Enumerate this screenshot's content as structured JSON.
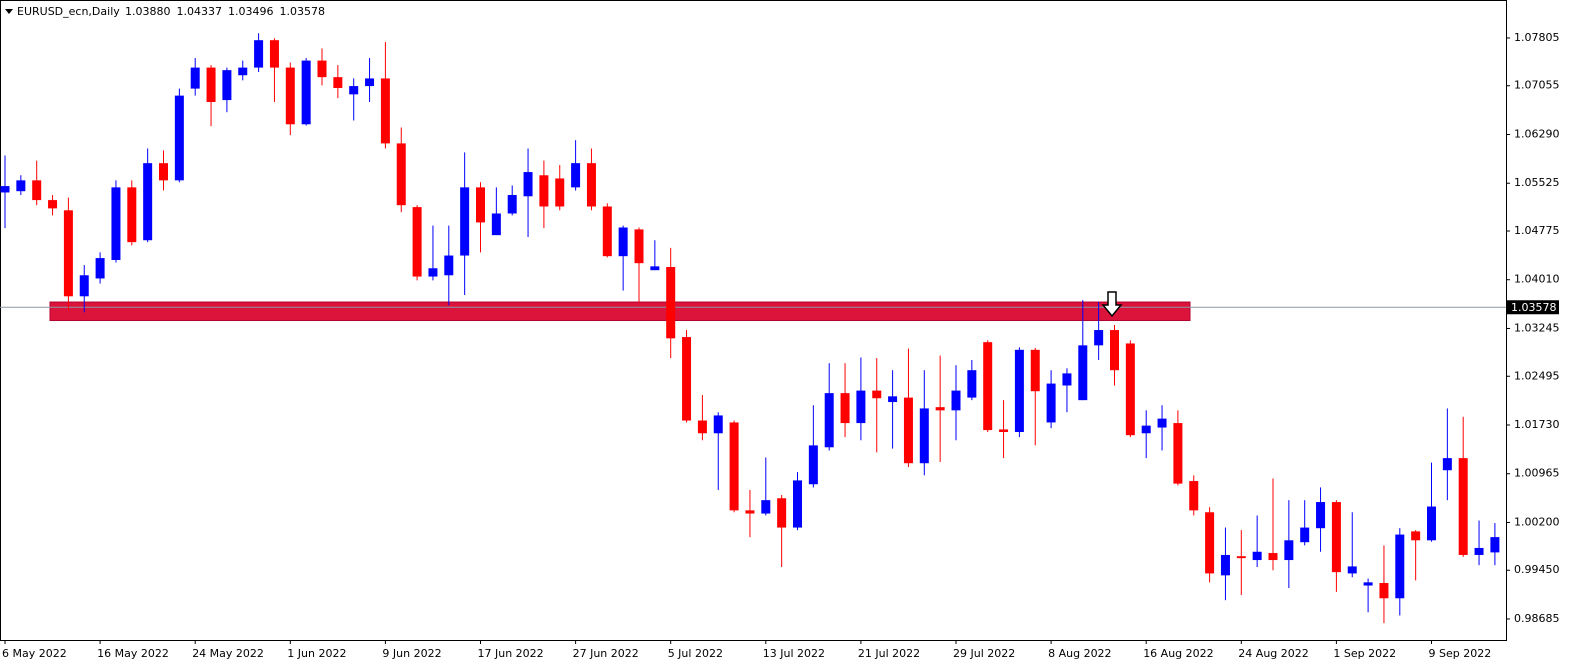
{
  "chart_data": {
    "type": "candlestick",
    "title": "EURUSD_ecn,Daily",
    "header_ohlc": [
      {
        "value": 1.0388,
        "label": "1.03880"
      },
      1.04337,
      1.03496,
      1.03578
    ],
    "x": [
      "6 May 2022",
      null,
      null,
      null,
      null,
      null,
      "16 May 2022",
      null,
      null,
      null,
      null,
      null,
      "24 May 2022",
      null,
      null,
      null,
      null,
      null,
      "1 Jun 2022",
      null,
      null,
      null,
      null,
      null,
      "9 Jun 2022",
      null,
      null,
      null,
      null,
      null,
      "17 Jun 2022",
      null,
      null,
      null,
      null,
      null,
      "27 Jun 2022",
      null,
      null,
      null,
      null,
      null,
      "5 Jul 2022",
      null,
      null,
      null,
      null,
      null,
      "13 Jul 2022",
      null,
      null,
      null,
      null,
      null,
      "21 Jul 2022",
      null,
      null,
      null,
      null,
      null,
      "29 Jul 2022",
      null,
      null,
      null,
      null,
      null,
      "8 Aug 2022",
      null,
      null,
      null,
      null,
      null,
      "16 Aug 2022",
      null,
      null,
      null,
      null,
      null,
      "24 Aug 2022",
      null,
      null,
      null,
      null,
      null,
      "1 Sep 2022",
      null,
      null,
      null,
      null,
      null,
      "9 Sep 2022",
      null,
      null,
      null,
      null
    ],
    "open": [
      1.0538,
      1.054,
      1.0557,
      1.0526,
      1.051,
      1.0375,
      1.0403,
      1.0432,
      1.0546,
      1.0463,
      1.0584,
      1.0557,
      1.0701,
      1.0734,
      1.0683,
      1.0722,
      1.0734,
      1.0777,
      1.0734,
      1.0645,
      1.0745,
      1.0719,
      1.0692,
      1.0705,
      1.0717,
      1.0615,
      1.0515,
      1.0406,
      1.0408,
      1.0439,
      1.0546,
      1.0471,
      1.0505,
      1.0532,
      1.0565,
      1.056,
      1.0546,
      1.0584,
      1.0516,
      1.0438,
      1.048,
      1.0416,
      1.0421,
      1.0311,
      1.018,
      1.016,
      1.0177,
      1.0039,
      1.0034,
      1.0058,
      1.0012,
      1.008,
      1.0138,
      1.0223,
      1.0176,
      1.0227,
      1.0209,
      1.0216,
      1.0113,
      1.0201,
      1.0196,
      1.0216,
      1.0303,
      1.0166,
      1.0162,
      1.0291,
      1.0177,
      1.0235,
      1.0212,
      1.0298,
      1.0322,
      1.0301,
      1.016,
      1.0169,
      1.0176,
      1.0085,
      1.0036,
      0.9937,
      0.9967,
      0.9961,
      0.9972,
      0.9961,
      0.9989,
      1.0011,
      1.0052,
      0.994,
      0.9921,
      0.9925,
      0.9901,
      1.0006,
      0.9992,
      1.0102,
      1.0121,
      0.9969,
      0.9973
    ],
    "high": [
      1.0596,
      1.0565,
      1.0588,
      1.0534,
      1.053,
      1.0424,
      1.0444,
      1.0557,
      1.0557,
      1.0607,
      1.0604,
      1.0701,
      1.0749,
      1.0738,
      1.0734,
      1.0745,
      1.0788,
      1.078,
      1.0742,
      1.0749,
      1.0764,
      1.0738,
      1.0717,
      1.0749,
      1.0774,
      1.064,
      1.0518,
      1.0486,
      1.0486,
      1.0601,
      1.0554,
      1.0546,
      1.0549,
      1.0607,
      1.0588,
      1.0581,
      1.062,
      1.0607,
      1.0521,
      1.0486,
      1.0483,
      1.0463,
      1.0451,
      1.0322,
      1.022,
      1.0193,
      1.018,
      1.0071,
      1.0122,
      1.0063,
      1.0099,
      1.0204,
      1.027,
      1.027,
      1.0279,
      1.0278,
      1.0259,
      1.0293,
      1.0259,
      1.0282,
      1.0267,
      1.0275,
      1.0306,
      1.0212,
      1.0295,
      1.0294,
      1.0259,
      1.0262,
      1.0369,
      1.0366,
      1.033,
      1.0306,
      1.0196,
      1.0204,
      1.0196,
      1.0094,
      1.0044,
      1.0012,
      1.0008,
      1.0031,
      1.0089,
      1.0055,
      1.0055,
      1.0075,
      1.0055,
      1.0036,
      0.9932,
      0.9984,
      1.0011,
      1.0008,
      1.0114,
      1.0199,
      1.0186,
      1.0023,
      1.0019
    ],
    "low": [
      1.0482,
      1.0534,
      1.0518,
      1.0502,
      1.0353,
      1.035,
      1.0395,
      1.0428,
      1.0455,
      1.046,
      1.0541,
      1.0554,
      1.069,
      1.0642,
      1.0664,
      1.0714,
      1.0727,
      1.068,
      1.0628,
      1.0643,
      1.0706,
      1.0686,
      1.0651,
      1.068,
      1.0607,
      1.0507,
      1.04,
      1.04,
      1.0361,
      1.0377,
      1.0444,
      1.0471,
      1.0502,
      1.0468,
      1.0482,
      1.051,
      1.0541,
      1.051,
      1.0436,
      1.0384,
      1.0366,
      1.0416,
      1.0278,
      1.0177,
      1.0149,
      1.0071,
      1.0036,
      0.9997,
      1.0031,
      0.995,
      1.0008,
      1.0075,
      1.0133,
      1.0154,
      1.0149,
      1.013,
      1.0136,
      1.0107,
      1.0094,
      1.0115,
      1.0149,
      1.0212,
      1.0162,
      1.0121,
      1.0154,
      1.0141,
      1.0168,
      1.0193,
      1.0212,
      1.0275,
      1.0235,
      1.0154,
      1.0121,
      1.0133,
      1.0078,
      1.0031,
      0.9926,
      0.9898,
      0.9906,
      0.995,
      0.9945,
      0.9917,
      0.9984,
      0.9974,
      0.9911,
      0.9934,
      0.9879,
      0.9862,
      0.9874,
      0.9929,
      0.999,
      1.0055,
      0.9966,
      0.9953,
      0.9953
    ],
    "close": [
      1.0548,
      1.0557,
      1.0526,
      1.0513,
      1.0375,
      1.0408,
      1.0435,
      1.0546,
      1.046,
      1.0584,
      1.0557,
      1.069,
      1.0734,
      1.068,
      1.073,
      1.0734,
      1.0777,
      1.0734,
      1.0645,
      1.0745,
      1.0719,
      1.0702,
      1.0705,
      1.0717,
      1.0615,
      1.0518,
      1.0406,
      1.0419,
      1.0439,
      1.0546,
      1.0491,
      1.0505,
      1.0534,
      1.057,
      1.0516,
      1.0516,
      1.0584,
      1.0516,
      1.0438,
      1.0483,
      1.0427,
      1.0422,
      1.0309,
      1.018,
      1.016,
      1.0188,
      1.0039,
      1.0034,
      1.0055,
      1.0012,
      1.0086,
      1.0141,
      1.0223,
      1.0176,
      1.0227,
      1.0215,
      1.0218,
      1.0113,
      1.0199,
      1.0196,
      1.0227,
      1.0259,
      1.0165,
      1.0162,
      1.0291,
      1.0226,
      1.0238,
      1.0254,
      1.0298,
      1.0322,
      1.0259,
      1.0157,
      1.0172,
      1.0183,
      1.0081,
      1.0039,
      0.994,
      0.9969,
      0.9964,
      0.9974,
      0.9961,
      0.9992,
      1.0012,
      1.0052,
      0.9942,
      0.9951,
      0.9926,
      0.9901,
      1.0001,
      0.9992,
      1.0045,
      1.0121,
      0.9969,
      0.998,
      0.9997
    ],
    "up_color": "#0000ff",
    "down_color": "#ff0000",
    "ylim": [
      0.98355,
      1.08401
    ],
    "yticks": [
      1.07805,
      1.07055,
      {
        "value": 1.0629,
        "label": "1.06290"
      },
      1.05525,
      1.04775,
      {
        "value": 1.0401,
        "label": "1.04010"
      },
      1.03245,
      1.02495,
      {
        "value": 1.0173,
        "label": "1.01730"
      },
      1.00965,
      {
        "value": 1.002,
        "label": "1.00200"
      },
      {
        "value": 0.9945,
        "label": "0.99450"
      },
      0.98685
    ],
    "price_line": {
      "value": 1.03578,
      "label": "1.03578"
    },
    "zone": [
      1.0337,
      1.0366
    ],
    "zone_color": "#dc143c"
  }
}
